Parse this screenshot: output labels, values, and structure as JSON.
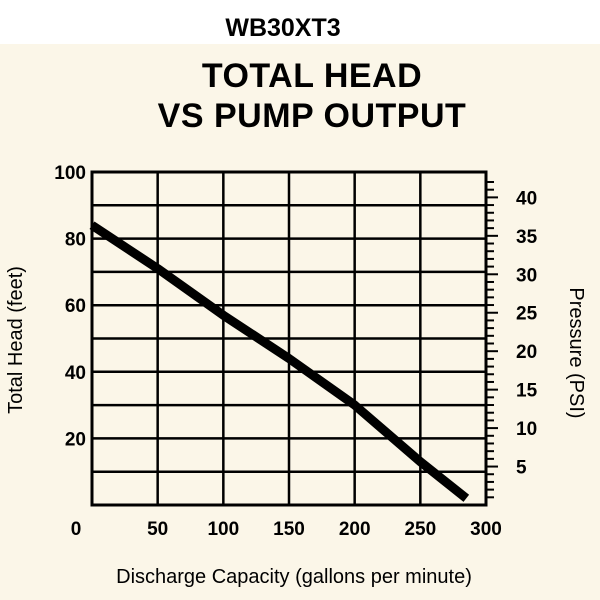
{
  "chart_data": {
    "type": "line",
    "model": "WB30XT3",
    "title_lines": [
      "TOTAL HEAD",
      "VS PUMP OUTPUT"
    ],
    "xlabel": "Discharge Capacity (gallons per minute)",
    "ylabel": "Total Head (feet)",
    "y2label": "Pressure (PSI)",
    "xlim": [
      0,
      300
    ],
    "ylim": [
      0,
      100
    ],
    "y2lim": [
      0,
      43.3
    ],
    "x_ticks": [
      "0",
      "50",
      "100",
      "150",
      "200",
      "250",
      "300"
    ],
    "y_ticks": [
      "20",
      "40",
      "60",
      "80",
      "100"
    ],
    "y2_ticks": [
      "5",
      "10",
      "15",
      "20",
      "25",
      "30",
      "35",
      "40"
    ],
    "grid": true,
    "series": [
      {
        "x": [
          0,
          50,
          100,
          150,
          200,
          250,
          285
        ],
        "y": [
          84,
          71,
          57,
          44,
          30,
          13,
          2
        ]
      }
    ],
    "line_color": "#000000"
  }
}
